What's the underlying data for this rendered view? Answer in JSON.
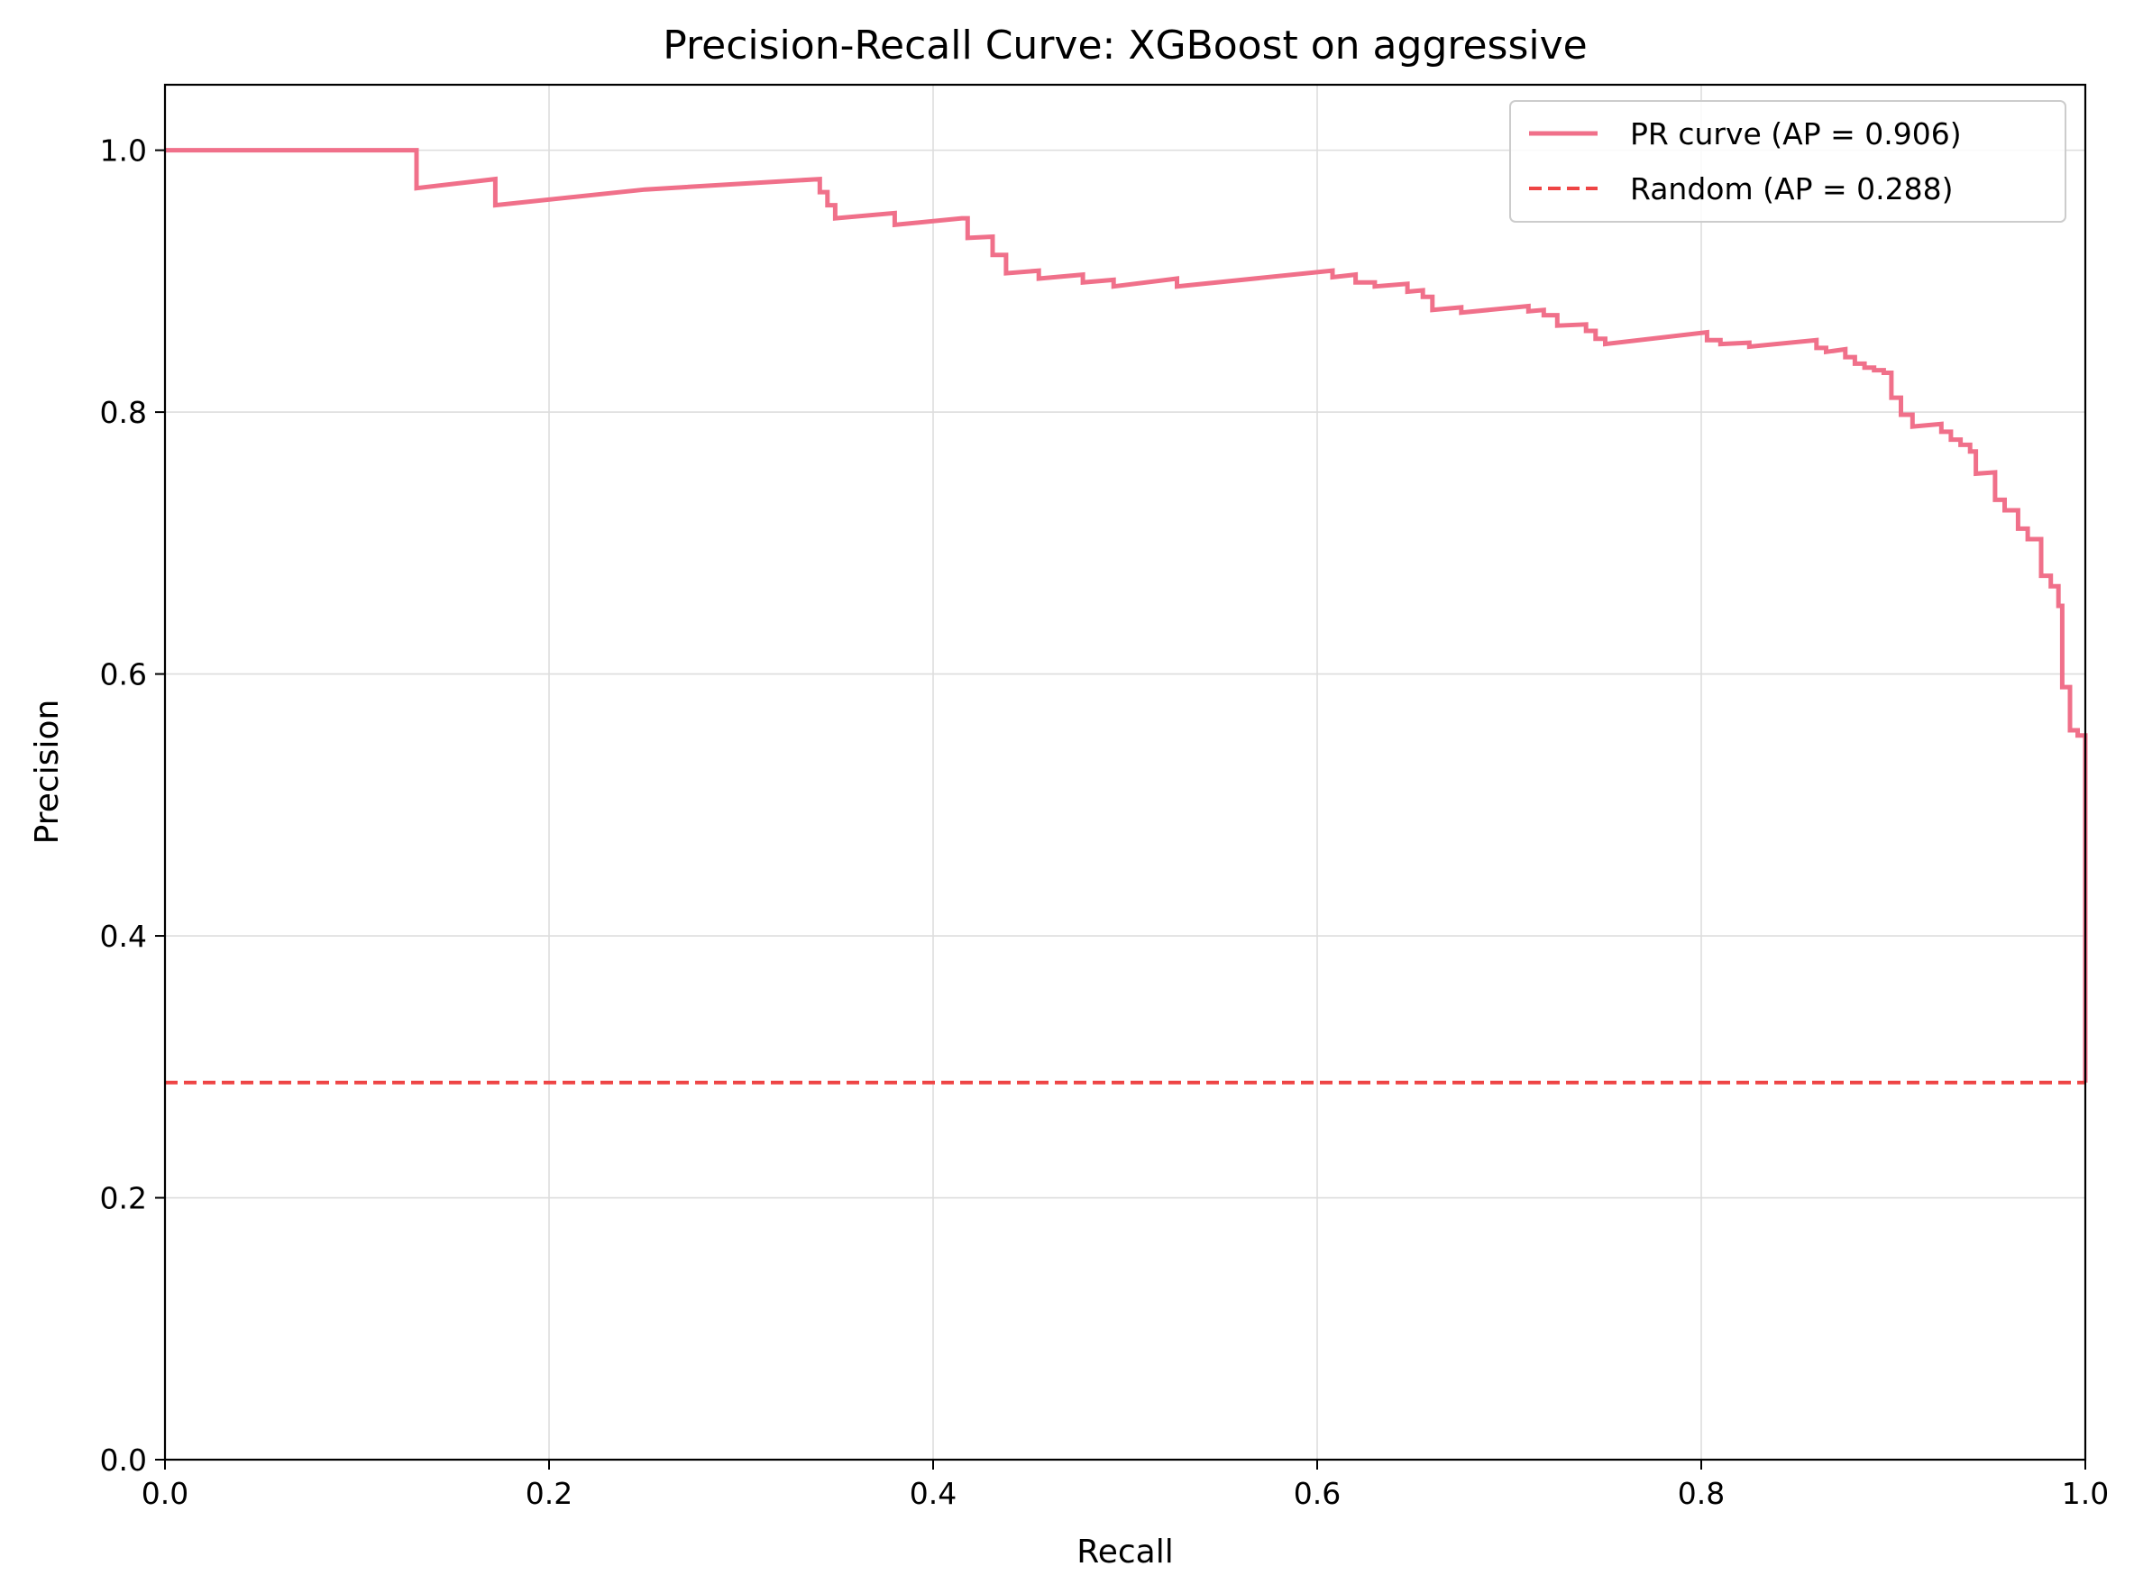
{
  "chart_data": {
    "type": "line",
    "title": "Precision-Recall Curve: XGBoost on aggressive",
    "xlabel": "Recall",
    "ylabel": "Precision",
    "xlim": [
      0.0,
      1.0
    ],
    "ylim": [
      0.0,
      1.05
    ],
    "xticks": [
      "0.0",
      "0.2",
      "0.4",
      "0.6",
      "0.8",
      "1.0"
    ],
    "yticks": [
      "0.0",
      "0.2",
      "0.4",
      "0.6",
      "0.8",
      "1.0"
    ],
    "grid": true,
    "legend_position": "top-right",
    "series": [
      {
        "name": "PR curve (AP = 0.906)",
        "color": "#f0708a",
        "style": "solid",
        "points": [
          [
            0.0,
            1.0
          ],
          [
            0.131,
            1.0
          ],
          [
            0.131,
            0.971
          ],
          [
            0.172,
            0.978
          ],
          [
            0.172,
            0.958
          ],
          [
            0.25,
            0.97
          ],
          [
            0.341,
            0.978
          ],
          [
            0.341,
            0.968
          ],
          [
            0.345,
            0.968
          ],
          [
            0.345,
            0.958
          ],
          [
            0.349,
            0.958
          ],
          [
            0.349,
            0.948
          ],
          [
            0.38,
            0.952
          ],
          [
            0.38,
            0.943
          ],
          [
            0.415,
            0.948
          ],
          [
            0.418,
            0.948
          ],
          [
            0.418,
            0.933
          ],
          [
            0.431,
            0.934
          ],
          [
            0.431,
            0.92
          ],
          [
            0.438,
            0.92
          ],
          [
            0.438,
            0.906
          ],
          [
            0.455,
            0.908
          ],
          [
            0.455,
            0.902
          ],
          [
            0.478,
            0.905
          ],
          [
            0.478,
            0.899
          ],
          [
            0.494,
            0.901
          ],
          [
            0.494,
            0.896
          ],
          [
            0.527,
            0.902
          ],
          [
            0.527,
            0.896
          ],
          [
            0.608,
            0.908
          ],
          [
            0.608,
            0.903
          ],
          [
            0.62,
            0.905
          ],
          [
            0.62,
            0.899
          ],
          [
            0.63,
            0.899
          ],
          [
            0.63,
            0.896
          ],
          [
            0.647,
            0.898
          ],
          [
            0.647,
            0.892
          ],
          [
            0.655,
            0.893
          ],
          [
            0.655,
            0.888
          ],
          [
            0.66,
            0.888
          ],
          [
            0.66,
            0.878
          ],
          [
            0.675,
            0.88
          ],
          [
            0.675,
            0.876
          ],
          [
            0.71,
            0.881
          ],
          [
            0.71,
            0.877
          ],
          [
            0.718,
            0.878
          ],
          [
            0.718,
            0.874
          ],
          [
            0.725,
            0.874
          ],
          [
            0.725,
            0.866
          ],
          [
            0.74,
            0.867
          ],
          [
            0.74,
            0.862
          ],
          [
            0.745,
            0.862
          ],
          [
            0.745,
            0.856
          ],
          [
            0.75,
            0.856
          ],
          [
            0.75,
            0.852
          ],
          [
            0.803,
            0.861
          ],
          [
            0.803,
            0.855
          ],
          [
            0.81,
            0.855
          ],
          [
            0.81,
            0.852
          ],
          [
            0.825,
            0.853
          ],
          [
            0.825,
            0.85
          ],
          [
            0.86,
            0.855
          ],
          [
            0.86,
            0.849
          ],
          [
            0.865,
            0.849
          ],
          [
            0.865,
            0.846
          ],
          [
            0.875,
            0.848
          ],
          [
            0.875,
            0.842
          ],
          [
            0.88,
            0.842
          ],
          [
            0.88,
            0.837
          ],
          [
            0.885,
            0.837
          ],
          [
            0.885,
            0.834
          ],
          [
            0.89,
            0.834
          ],
          [
            0.89,
            0.832
          ],
          [
            0.895,
            0.832
          ],
          [
            0.895,
            0.83
          ],
          [
            0.899,
            0.83
          ],
          [
            0.899,
            0.811
          ],
          [
            0.904,
            0.811
          ],
          [
            0.904,
            0.798
          ],
          [
            0.91,
            0.798
          ],
          [
            0.91,
            0.789
          ],
          [
            0.925,
            0.791
          ],
          [
            0.925,
            0.785
          ],
          [
            0.93,
            0.785
          ],
          [
            0.93,
            0.779
          ],
          [
            0.935,
            0.779
          ],
          [
            0.935,
            0.775
          ],
          [
            0.94,
            0.775
          ],
          [
            0.94,
            0.77
          ],
          [
            0.943,
            0.77
          ],
          [
            0.943,
            0.753
          ],
          [
            0.953,
            0.754
          ],
          [
            0.953,
            0.733
          ],
          [
            0.958,
            0.733
          ],
          [
            0.958,
            0.725
          ],
          [
            0.965,
            0.725
          ],
          [
            0.965,
            0.711
          ],
          [
            0.97,
            0.711
          ],
          [
            0.97,
            0.703
          ],
          [
            0.977,
            0.703
          ],
          [
            0.977,
            0.675
          ],
          [
            0.982,
            0.675
          ],
          [
            0.982,
            0.667
          ],
          [
            0.986,
            0.667
          ],
          [
            0.986,
            0.652
          ],
          [
            0.988,
            0.652
          ],
          [
            0.988,
            0.59
          ],
          [
            0.992,
            0.59
          ],
          [
            0.992,
            0.557
          ],
          [
            0.996,
            0.557
          ],
          [
            0.996,
            0.553
          ],
          [
            1.0,
            0.553
          ],
          [
            1.0,
            0.288
          ]
        ]
      },
      {
        "name": "Random (AP = 0.288)",
        "color": "#ee4444",
        "style": "dashed",
        "points": [
          [
            0.0,
            0.288
          ],
          [
            1.0,
            0.288
          ]
        ]
      }
    ]
  }
}
